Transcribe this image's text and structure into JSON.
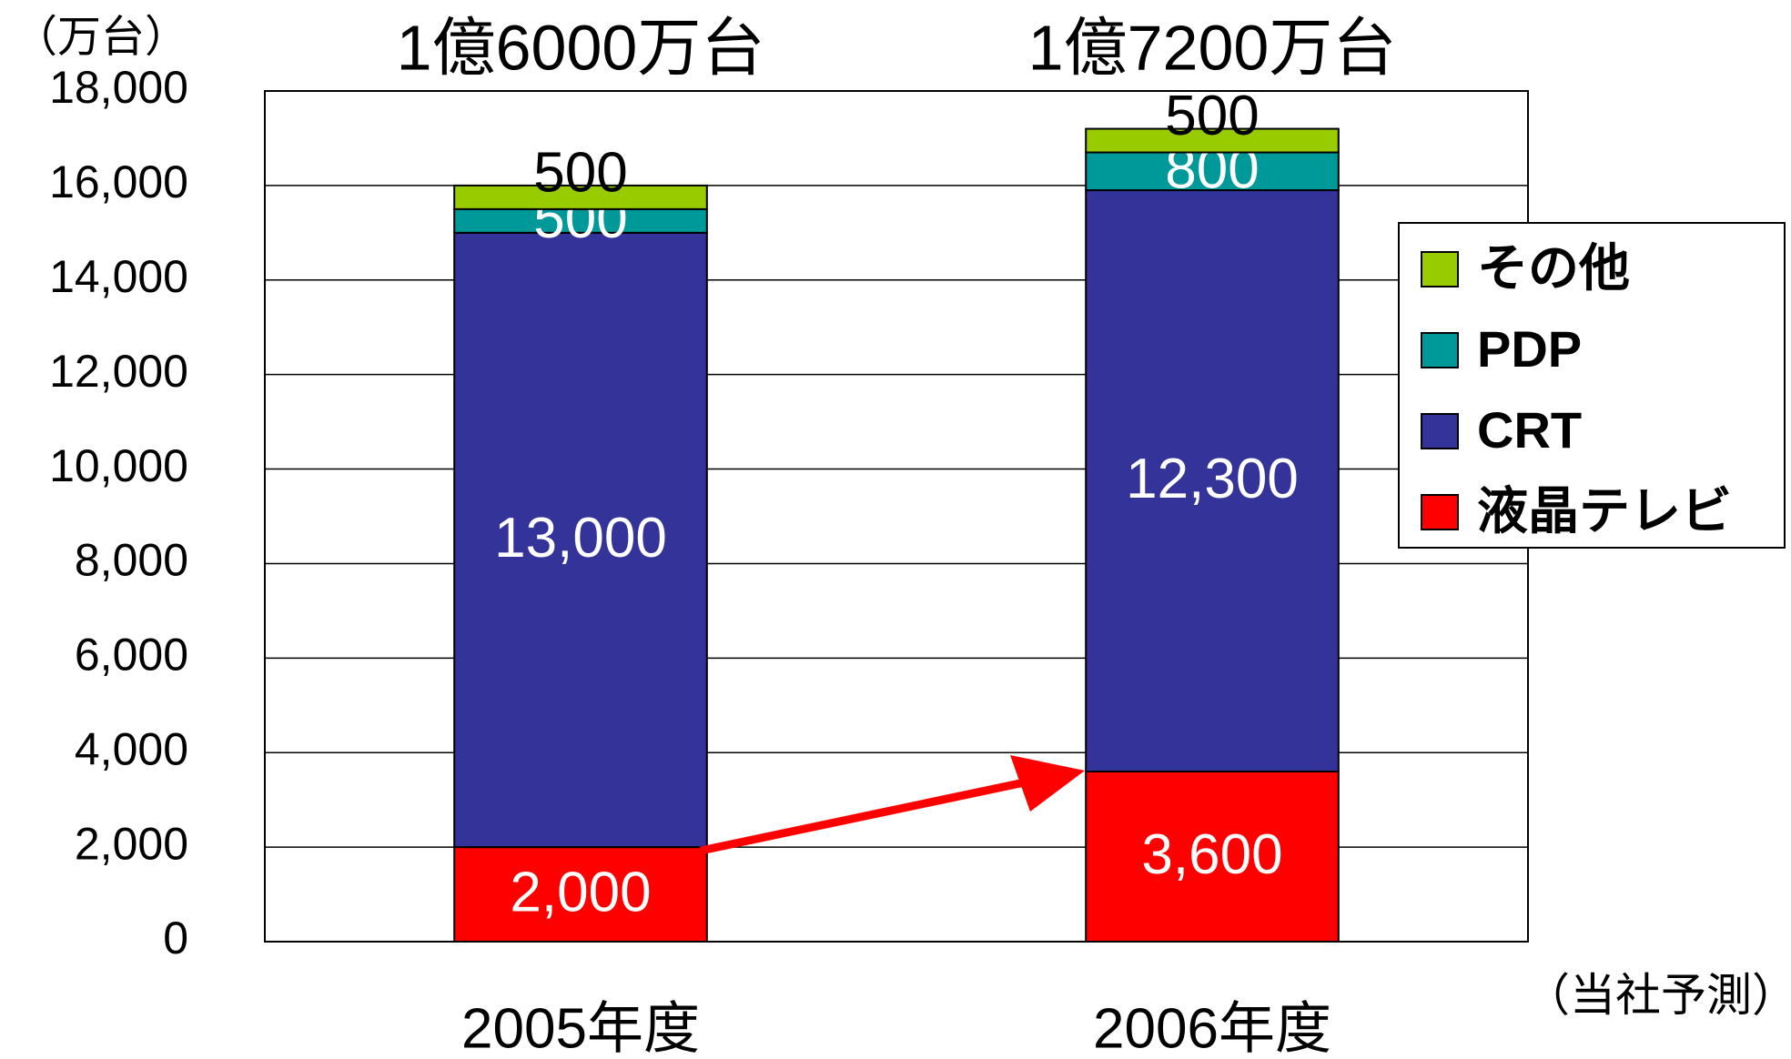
{
  "chart_data": {
    "type": "stacked_bar",
    "categories": [
      "2005年度",
      "2006年度"
    ],
    "series": [
      {
        "name": "液晶テレビ",
        "color": "#ff0000",
        "values": [
          2000,
          3600
        ],
        "value_labels": [
          "2,000",
          "3,600"
        ]
      },
      {
        "name": "CRT",
        "color": "#333399",
        "values": [
          13000,
          12300
        ],
        "value_labels": [
          "13,000",
          "12,300"
        ]
      },
      {
        "name": "PDP",
        "color": "#009999",
        "values": [
          500,
          800
        ]
      },
      {
        "name": "その他",
        "color": "#99cc00",
        "values": [
          500,
          500
        ]
      }
    ],
    "totals_labels": [
      "1億6000万台",
      "1億7200万台"
    ],
    "y_unit_label": "（万台）",
    "note": "（当社予測）",
    "ylim": [
      0,
      18000
    ],
    "yticks": [
      0,
      {
        "value": 2000,
        "label": "2,000"
      },
      {
        "value": 4000,
        "label": "4,000"
      },
      {
        "value": 6000,
        "label": "6,000"
      },
      {
        "value": 8000,
        "label": "8,000"
      },
      {
        "value": 10000,
        "label": "10,000"
      },
      {
        "value": 12000,
        "label": "12,000"
      },
      {
        "value": 14000,
        "label": "14,000"
      },
      {
        "value": 16000,
        "label": "16,000"
      },
      {
        "value": 18000,
        "label": "18,000"
      }
    ],
    "grid": true,
    "legend": "right"
  }
}
